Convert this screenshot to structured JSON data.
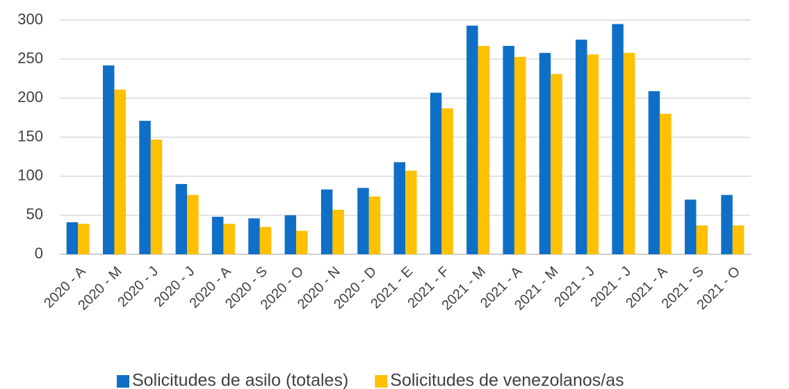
{
  "chart_data": {
    "type": "bar",
    "categories": [
      "2020 - A",
      "2020 - M",
      "2020 - J",
      "2020 - J",
      "2020 - A",
      "2020 - S",
      "2020 - O",
      "2020 - N",
      "2020 - D",
      "2021 - E",
      "2021 - F",
      "2021 - M",
      "2021 - A",
      "2021 - M",
      "2021 - J",
      "2021 - J",
      "2021 - A",
      "2021 - S",
      "2021 - O"
    ],
    "series": [
      {
        "name": "Solicitudes de asilo (totales)",
        "color": "#0f6fc6",
        "values": [
          41,
          242,
          171,
          90,
          48,
          46,
          50,
          83,
          85,
          118,
          207,
          293,
          267,
          258,
          275,
          295,
          209,
          70,
          76
        ]
      },
      {
        "name": "Solicitudes de venezolanos/as",
        "color": "#ffc000",
        "values": [
          39,
          211,
          147,
          76,
          39,
          35,
          30,
          57,
          74,
          107,
          187,
          267,
          253,
          231,
          256,
          258,
          180,
          37,
          37
        ]
      }
    ],
    "ylim": [
      0,
      300
    ],
    "yticks": [
      0,
      50,
      100,
      150,
      200,
      250,
      300
    ],
    "grid": true,
    "legend": "bottom"
  }
}
